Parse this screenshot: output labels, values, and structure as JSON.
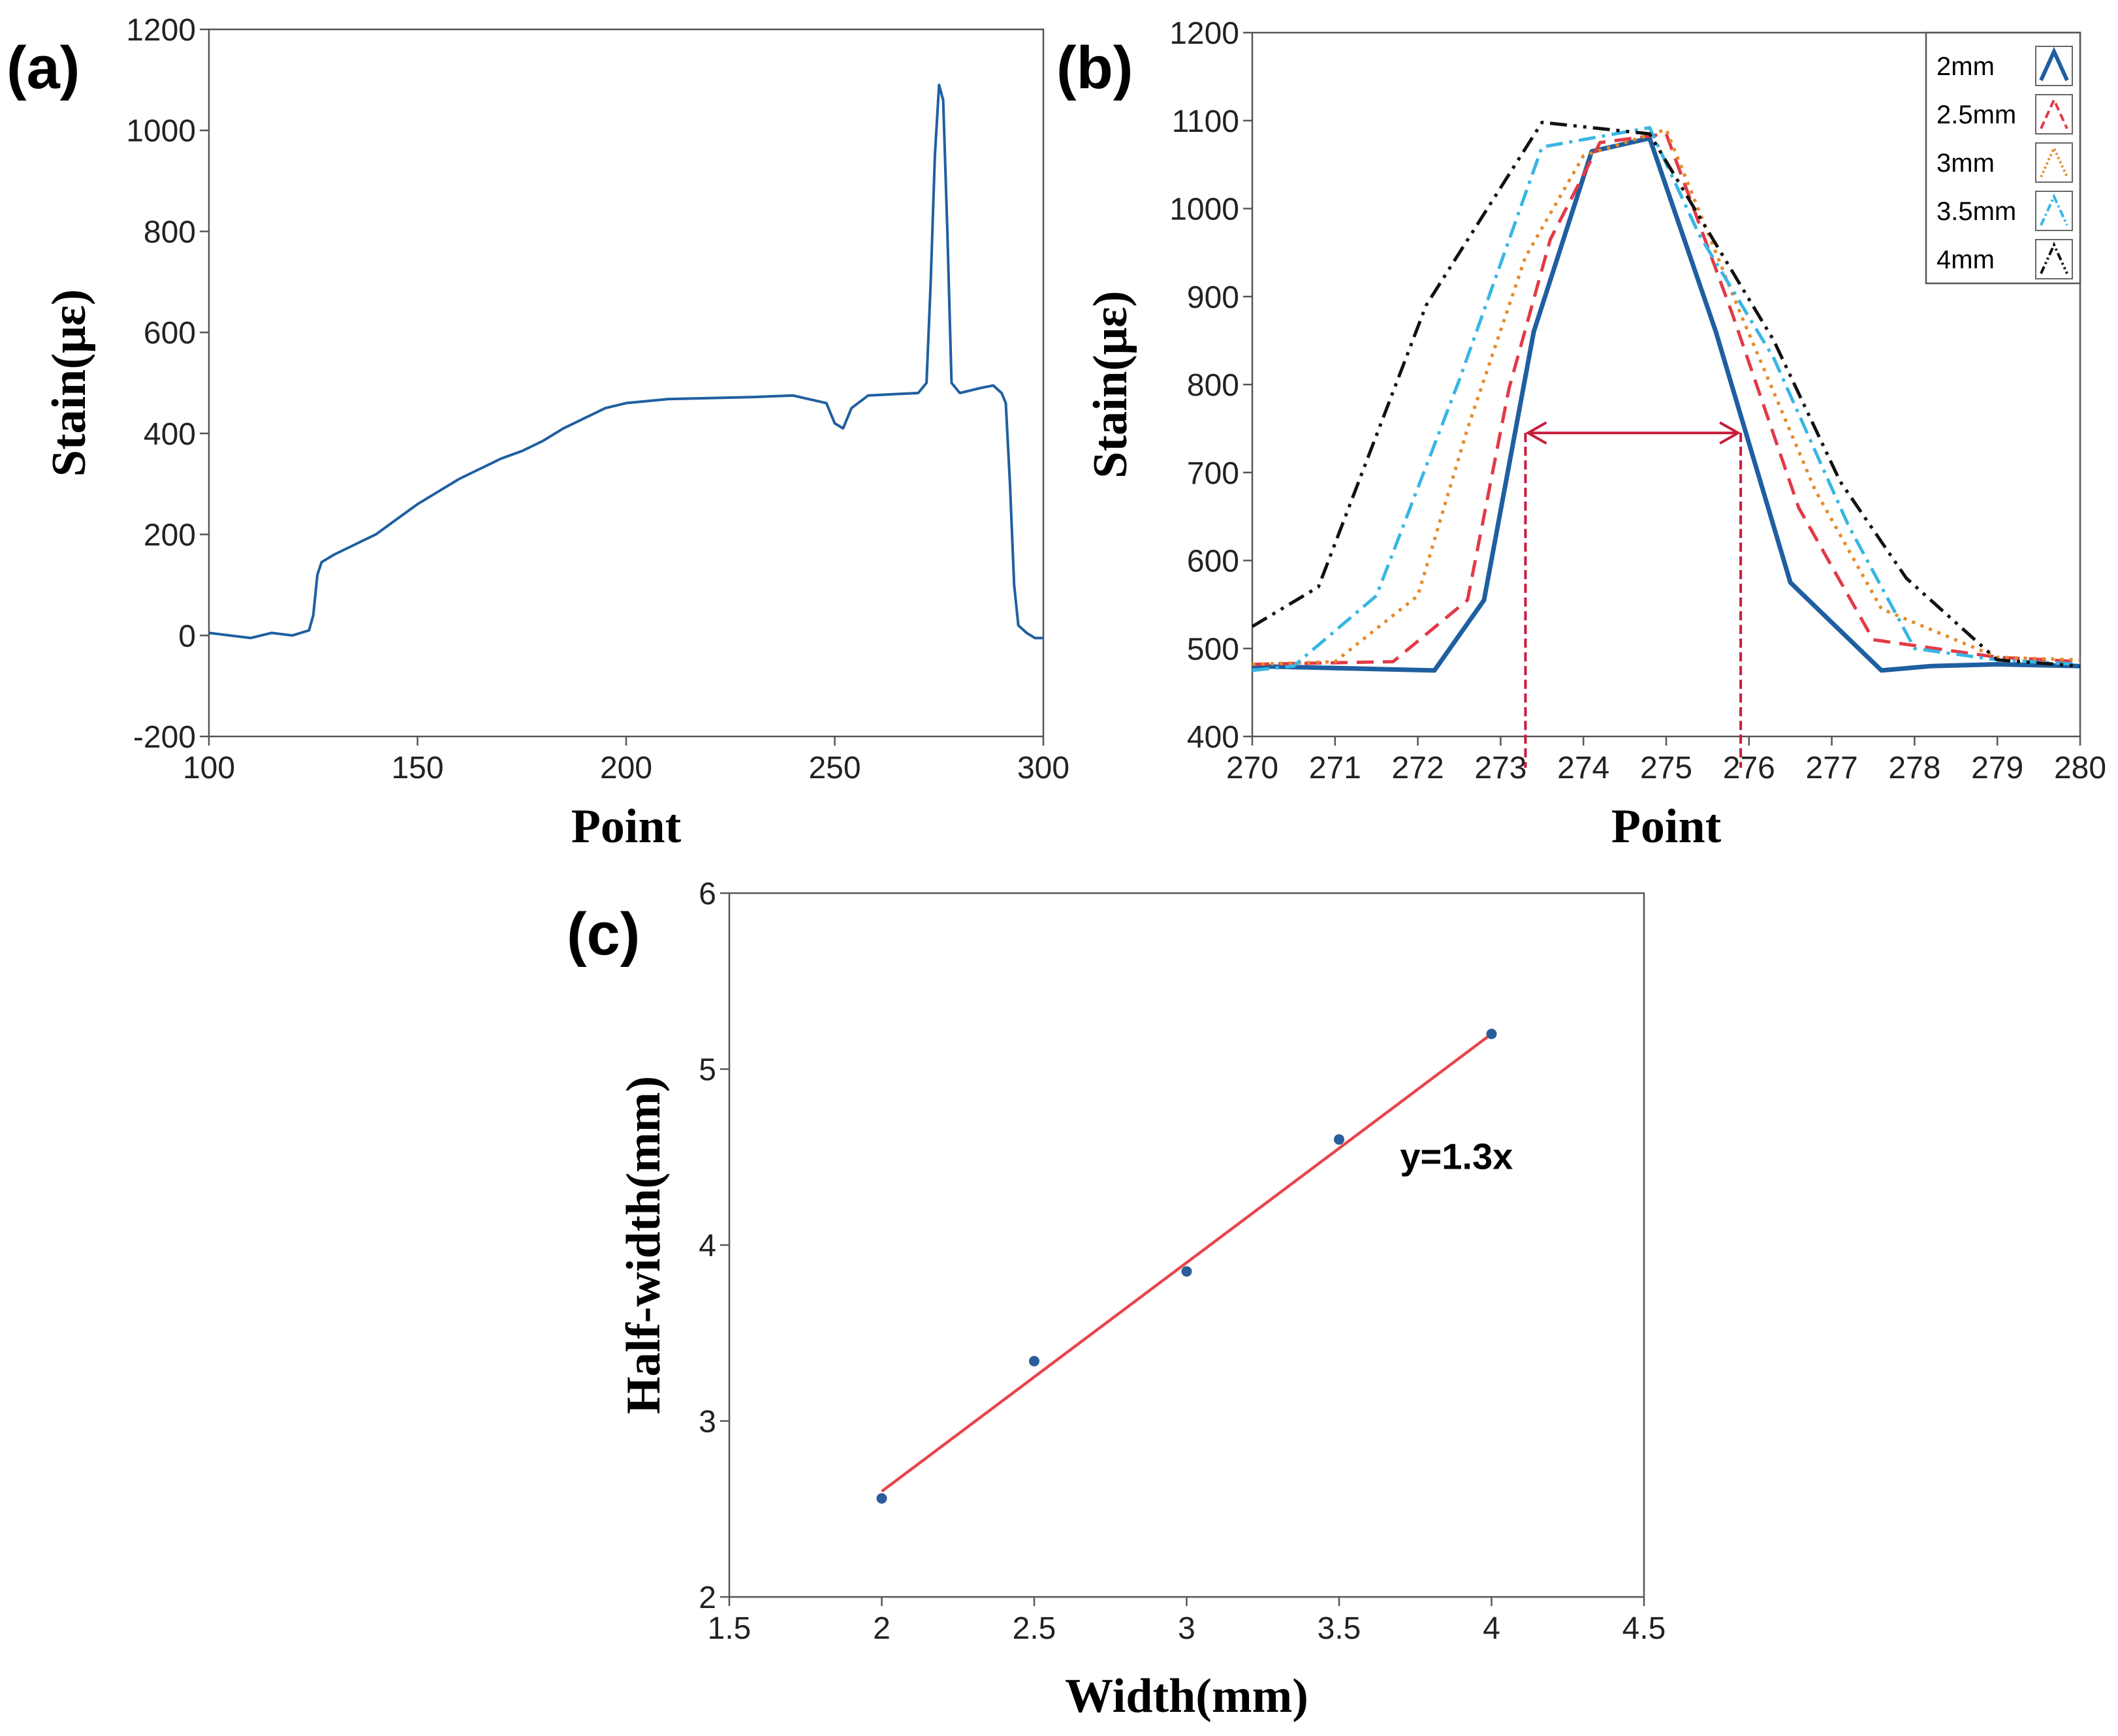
{
  "colors": {
    "primary_blue": "#1f5fa0",
    "red": "#e23a46",
    "orange": "#e58a2a",
    "cyan": "#38b6e4",
    "black": "#111111",
    "marker_red": "#c81d3c",
    "fit_red": "#e8474c",
    "point_blue": "#2a5d9a"
  },
  "chart_data": [
    {
      "id": "a",
      "type": "line",
      "panel_label": "(a)",
      "xlabel": "Point",
      "ylabel": "Stain(με)",
      "xlim": [
        100,
        300
      ],
      "ylim": [
        -200,
        1200
      ],
      "xticks": [
        "100",
        "150",
        "200",
        "250",
        "300"
      ],
      "yticks": [
        "-200",
        "0",
        "200",
        "400",
        "600",
        "800",
        "1000",
        "1200"
      ],
      "series": [
        {
          "name": "strain",
          "x": [
            100,
            105,
            110,
            115,
            120,
            124,
            125,
            126,
            127,
            130,
            135,
            140,
            145,
            150,
            155,
            160,
            165,
            170,
            175,
            180,
            185,
            190,
            195,
            200,
            210,
            220,
            230,
            240,
            248,
            250,
            252,
            254,
            258,
            265,
            270,
            272,
            273,
            274,
            275,
            276,
            277,
            278,
            280,
            285,
            288,
            290,
            291,
            292,
            293,
            294,
            296,
            298,
            300
          ],
          "y": [
            5,
            0,
            -5,
            5,
            0,
            10,
            40,
            120,
            145,
            160,
            180,
            200,
            230,
            260,
            285,
            310,
            330,
            350,
            365,
            385,
            410,
            430,
            450,
            460,
            468,
            470,
            472,
            475,
            460,
            420,
            410,
            450,
            475,
            478,
            480,
            500,
            700,
            950,
            1090,
            1060,
            800,
            500,
            480,
            490,
            495,
            480,
            460,
            300,
            100,
            20,
            5,
            -5,
            -5
          ]
        }
      ]
    },
    {
      "id": "b",
      "type": "line",
      "panel_label": "(b)",
      "xlabel": "Point",
      "ylabel": "Stain(με)",
      "xlim": [
        270,
        280
      ],
      "ylim": [
        400,
        1200
      ],
      "xticks": [
        "270",
        "271",
        "272",
        "273",
        "274",
        "275",
        "276",
        "277",
        "278",
        "279",
        "280"
      ],
      "yticks": [
        "400",
        "500",
        "600",
        "700",
        "800",
        "900",
        "1000",
        "1100",
        "1200"
      ],
      "legend_position": "top-right",
      "series": [
        {
          "name": "2mm",
          "x": [
            270,
            272.2,
            272.8,
            273.4,
            274.1,
            274.8,
            275.6,
            276.5,
            277.6,
            278.2,
            279,
            280
          ],
          "y": [
            480,
            475,
            555,
            860,
            1065,
            1080,
            860,
            575,
            475,
            480,
            482,
            480
          ]
        },
        {
          "name": "2.5mm",
          "x": [
            270,
            271.7,
            272.6,
            273.1,
            273.6,
            274.2,
            275,
            275.8,
            276.6,
            277.5,
            279,
            280
          ],
          "y": [
            482,
            485,
            555,
            795,
            965,
            1075,
            1085,
            880,
            660,
            510,
            490,
            485
          ]
        },
        {
          "name": "3mm",
          "x": [
            270,
            271,
            272,
            272.6,
            273.3,
            274,
            275,
            275.9,
            276.8,
            277.6,
            279,
            280
          ],
          "y": [
            482,
            485,
            560,
            750,
            945,
            1060,
            1090,
            880,
            680,
            545,
            490,
            487
          ]
        },
        {
          "name": "3.5mm",
          "x": [
            270,
            270.5,
            271.5,
            272.5,
            273.5,
            274.8,
            275.4,
            276.3,
            277.2,
            278,
            279,
            280
          ],
          "y": [
            475,
            480,
            560,
            805,
            1070,
            1092,
            970,
            830,
            640,
            500,
            487,
            482
          ]
        },
        {
          "name": "4mm",
          "x": [
            270,
            270.8,
            272.1,
            273.5,
            274.8,
            276.3,
            277.1,
            277.9,
            279,
            280
          ],
          "y": [
            525,
            570,
            890,
            1098,
            1085,
            850,
            690,
            580,
            487,
            480
          ]
        }
      ],
      "annotation": {
        "x_left": 273.3,
        "x_right": 275.9,
        "y": 745
      }
    },
    {
      "id": "c",
      "type": "scatter",
      "panel_label": "(c)",
      "xlabel": "Width(mm)",
      "ylabel": "Half-width(mm)",
      "xlim": [
        1.5,
        4.5
      ],
      "ylim": [
        2,
        6
      ],
      "xticks": [
        "1.5",
        "2",
        "2.5",
        "3",
        "3.5",
        "4",
        "4.5"
      ],
      "yticks": [
        "2",
        "3",
        "4",
        "5",
        "6"
      ],
      "points": {
        "x": [
          2,
          2.5,
          3,
          3.5,
          4
        ],
        "y": [
          2.56,
          3.34,
          3.85,
          4.6,
          5.2
        ]
      },
      "fit": {
        "slope": 1.3,
        "x_range": [
          2,
          4
        ],
        "label": "y=1.3x"
      }
    }
  ]
}
